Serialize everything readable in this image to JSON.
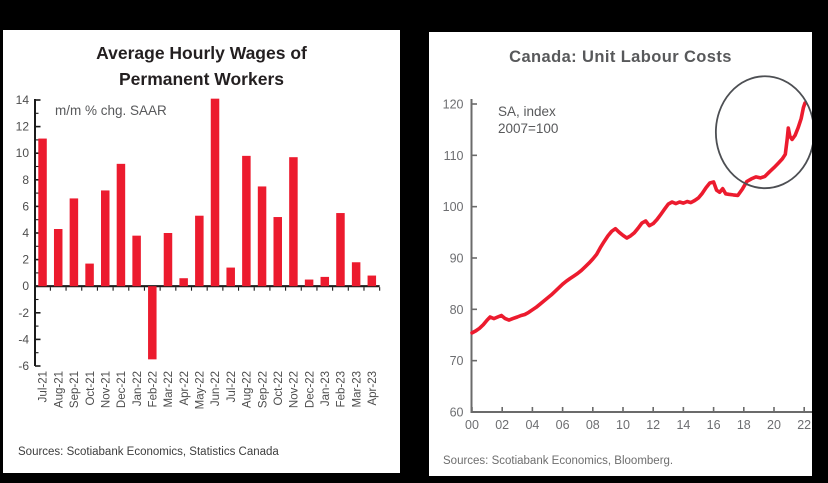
{
  "chart_data": [
    {
      "type": "bar",
      "title_lines": [
        "Average Hourly Wages of",
        "Permanent Workers"
      ],
      "title": "Average Hourly Wages of Permanent Workers",
      "annotation": "m/m % chg. SAAR",
      "source": "Sources: Scotiabank Economics, Statistics Canada",
      "categories": [
        "Jul-21",
        "Aug-21",
        "Sep-21",
        "Oct-21",
        "Nov-21",
        "Dec-21",
        "Jan-22",
        "Feb-22",
        "Mar-22",
        "Apr-22",
        "May-22",
        "Jun-22",
        "Jul-22",
        "Aug-22",
        "Sep-22",
        "Oct-22",
        "Nov-22",
        "Dec-22",
        "Jan-23",
        "Feb-23",
        "Mar-23",
        "Apr-23"
      ],
      "values": [
        11.1,
        4.3,
        6.6,
        1.7,
        7.2,
        9.2,
        3.8,
        -5.5,
        4.0,
        0.6,
        5.3,
        14.1,
        1.4,
        9.8,
        7.5,
        5.2,
        9.7,
        0.5,
        0.7,
        5.5,
        1.8,
        0.8
      ],
      "ylim": [
        -6,
        14
      ],
      "yticks": [
        14,
        12,
        10,
        8,
        6,
        4,
        2,
        0,
        -2,
        -4,
        -6
      ],
      "grid": false,
      "bar_color": "#EC1B2E",
      "axis_color": "#1a1a1a",
      "label_color": "#4d4d4d"
    },
    {
      "type": "line",
      "title": "Canada: Unit Labour Costs",
      "annotation_lines": [
        "SA, index",
        "2007=100"
      ],
      "source": "Sources: Scotiabank Economics, Bloomberg.",
      "ylim": [
        60,
        120
      ],
      "yticks": [
        60,
        70,
        80,
        90,
        100,
        110,
        120
      ],
      "xlim": [
        0,
        23
      ],
      "xticks": [
        0,
        2,
        4,
        6,
        8,
        10,
        12,
        14,
        16,
        18,
        20,
        22
      ],
      "xtick_labels": [
        "00",
        "02",
        "04",
        "06",
        "08",
        "10",
        "12",
        "14",
        "16",
        "18",
        "20",
        "22"
      ],
      "grid": false,
      "line_color": "#EC1B2E",
      "axis_color": "#6b6b6b",
      "label_color": "#6d6e71",
      "highlight_circle": {
        "center_year": 19.4,
        "center_value": 114.5,
        "radius_years": 3.25,
        "radius_values": 10.9,
        "color": "#4d4f53"
      },
      "points": [
        [
          0.0,
          75.4
        ],
        [
          0.25,
          75.8
        ],
        [
          0.5,
          76.3
        ],
        [
          0.75,
          77.0
        ],
        [
          1.0,
          77.9
        ],
        [
          1.2,
          78.5
        ],
        [
          1.45,
          78.2
        ],
        [
          1.7,
          78.5
        ],
        [
          1.95,
          78.8
        ],
        [
          2.2,
          78.2
        ],
        [
          2.45,
          77.9
        ],
        [
          2.7,
          78.2
        ],
        [
          3.0,
          78.5
        ],
        [
          3.25,
          78.8
        ],
        [
          3.5,
          79.0
        ],
        [
          3.75,
          79.4
        ],
        [
          4.0,
          79.9
        ],
        [
          4.25,
          80.4
        ],
        [
          4.5,
          81.0
        ],
        [
          4.75,
          81.6
        ],
        [
          5.0,
          82.2
        ],
        [
          5.25,
          82.8
        ],
        [
          5.5,
          83.5
        ],
        [
          5.75,
          84.2
        ],
        [
          6.0,
          84.9
        ],
        [
          6.25,
          85.5
        ],
        [
          6.5,
          86.0
        ],
        [
          6.75,
          86.5
        ],
        [
          7.0,
          87.0
        ],
        [
          7.25,
          87.6
        ],
        [
          7.5,
          88.3
        ],
        [
          7.75,
          89.0
        ],
        [
          8.0,
          89.8
        ],
        [
          8.25,
          90.7
        ],
        [
          8.5,
          92.0
        ],
        [
          8.75,
          93.2
        ],
        [
          9.0,
          94.3
        ],
        [
          9.25,
          95.2
        ],
        [
          9.5,
          95.7
        ],
        [
          9.75,
          95.0
        ],
        [
          10.0,
          94.4
        ],
        [
          10.25,
          93.9
        ],
        [
          10.5,
          94.3
        ],
        [
          10.75,
          94.9
        ],
        [
          11.0,
          95.8
        ],
        [
          11.25,
          96.8
        ],
        [
          11.5,
          97.2
        ],
        [
          11.75,
          96.3
        ],
        [
          12.0,
          96.7
        ],
        [
          12.25,
          97.5
        ],
        [
          12.5,
          98.5
        ],
        [
          12.75,
          99.5
        ],
        [
          13.0,
          100.5
        ],
        [
          13.25,
          100.9
        ],
        [
          13.5,
          100.6
        ],
        [
          13.75,
          100.9
        ],
        [
          14.0,
          100.7
        ],
        [
          14.25,
          101.0
        ],
        [
          14.5,
          100.8
        ],
        [
          14.75,
          101.2
        ],
        [
          15.0,
          101.7
        ],
        [
          15.25,
          102.6
        ],
        [
          15.5,
          103.7
        ],
        [
          15.75,
          104.6
        ],
        [
          16.0,
          104.8
        ],
        [
          16.2,
          103.2
        ],
        [
          16.4,
          102.8
        ],
        [
          16.6,
          103.5
        ],
        [
          16.8,
          102.5
        ],
        [
          17.0,
          102.4
        ],
        [
          17.3,
          102.3
        ],
        [
          17.6,
          102.2
        ],
        [
          17.9,
          103.4
        ],
        [
          18.2,
          104.9
        ],
        [
          18.5,
          105.4
        ],
        [
          18.8,
          105.8
        ],
        [
          19.1,
          105.6
        ],
        [
          19.4,
          105.9
        ],
        [
          19.7,
          106.8
        ],
        [
          20.0,
          107.6
        ],
        [
          20.3,
          108.5
        ],
        [
          20.55,
          109.3
        ],
        [
          20.75,
          110.2
        ],
        [
          20.87,
          113.0
        ],
        [
          20.95,
          115.3
        ],
        [
          21.05,
          113.7
        ],
        [
          21.2,
          113.1
        ],
        [
          21.4,
          113.9
        ],
        [
          21.6,
          115.4
        ],
        [
          21.8,
          117.2
        ],
        [
          21.95,
          119.3
        ],
        [
          22.05,
          120.2
        ]
      ]
    }
  ]
}
